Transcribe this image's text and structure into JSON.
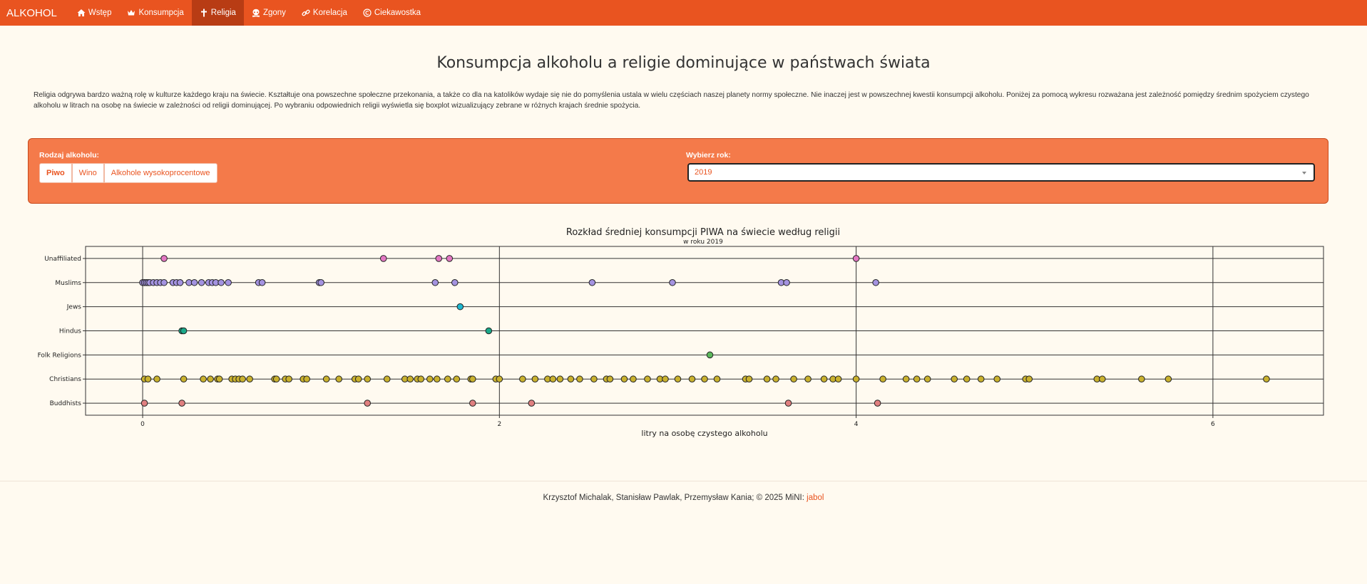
{
  "nav": {
    "brand": "ALKOHOL",
    "items": [
      {
        "label": "Wstęp",
        "icon": "home-icon"
      },
      {
        "label": "Konsumpcja",
        "icon": "crown-icon"
      },
      {
        "label": "Religia",
        "icon": "cross-icon",
        "active": true
      },
      {
        "label": "Zgony",
        "icon": "skull-icon"
      },
      {
        "label": "Korelacja",
        "icon": "link-icon"
      },
      {
        "label": "Ciekawostka",
        "icon": "copyright-icon"
      }
    ],
    "accent_color": "#e95420"
  },
  "page": {
    "title": "Konsumpcja alkoholu a religie dominujące w państwach świata",
    "intro": "Religia odgrywa bardzo ważną rolę w kulturze każdego kraju na świecie. Kształtuje ona powszechne społeczne przekonania, a także co dla na katolików wydaje się nie do pomyślenia ustala w wielu częściach naszej planety normy społeczne. Nie inaczej jest w powszechnej kwestii konsumpcji alkoholu. Poniżej za pomocą wykresu rozważana jest zależność pomiędzy średnim spożyciem czystego alkoholu w litrach na osobę na świecie w zależności od religii dominującej. Po wybraniu odpowiednich religii wyświetla się boxplot wizualizujący zebrane w różnych krajach średnie spożycia."
  },
  "controls": {
    "alcohol_label": "Rodzaj alkoholu:",
    "alcohol_options": [
      "Piwo",
      "Wino",
      "Alkohole wysokoprocentowe"
    ],
    "alcohol_selected": "Piwo",
    "year_label": "Wybierz rok:",
    "year_value": "2019"
  },
  "chart_data": {
    "type": "scatter",
    "title": "Rozkład średniej konsumpcji PIWA na świecie według religii",
    "subtitle": "w roku 2019",
    "xlabel": "litry na osobę czystego alkoholu",
    "ylabel": "",
    "xlim": [
      -0.32,
      6.62
    ],
    "xticks": [
      0,
      2,
      4,
      6
    ],
    "grid": true,
    "categories": [
      "Unaffiliated",
      "Muslims",
      "Jews",
      "Hindus",
      "Folk Religions",
      "Christians",
      "Buddhists"
    ],
    "series": [
      {
        "category": "Unaffiliated",
        "color": "#e377c2",
        "values": [
          0.12,
          1.35,
          1.66,
          1.72,
          4.0
        ]
      },
      {
        "category": "Muslims",
        "color": "#a493e0",
        "values": [
          0.0,
          0.01,
          0.02,
          0.03,
          0.04,
          0.06,
          0.08,
          0.1,
          0.12,
          0.17,
          0.19,
          0.21,
          0.26,
          0.29,
          0.33,
          0.37,
          0.39,
          0.41,
          0.44,
          0.48,
          0.65,
          0.67,
          0.99,
          1.0,
          1.64,
          1.75,
          2.52,
          2.97,
          3.58,
          3.61,
          4.11
        ]
      },
      {
        "category": "Jews",
        "color": "#1fb8d0",
        "values": [
          1.78
        ]
      },
      {
        "category": "Hindus",
        "color": "#1aa889",
        "values": [
          0.22,
          0.23,
          1.94
        ]
      },
      {
        "category": "Folk Religions",
        "color": "#5cb85c",
        "values": [
          3.18
        ]
      },
      {
        "category": "Christians",
        "color": "#c9b12e",
        "values": [
          0.01,
          0.03,
          0.08,
          0.23,
          0.34,
          0.38,
          0.42,
          0.43,
          0.5,
          0.52,
          0.54,
          0.56,
          0.6,
          0.74,
          0.75,
          0.8,
          0.82,
          0.9,
          0.92,
          1.03,
          1.1,
          1.19,
          1.21,
          1.26,
          1.37,
          1.47,
          1.5,
          1.54,
          1.56,
          1.61,
          1.65,
          1.71,
          1.76,
          1.84,
          1.85,
          1.98,
          2.0,
          2.13,
          2.2,
          2.27,
          2.3,
          2.34,
          2.4,
          2.45,
          2.53,
          2.6,
          2.62,
          2.7,
          2.75,
          2.83,
          2.9,
          2.93,
          3.0,
          3.08,
          3.15,
          3.22,
          3.38,
          3.4,
          3.5,
          3.55,
          3.65,
          3.73,
          3.82,
          3.87,
          3.9,
          4.0,
          4.15,
          4.28,
          4.34,
          4.4,
          4.55,
          4.62,
          4.7,
          4.79,
          4.95,
          4.97,
          5.35,
          5.38,
          5.6,
          5.75,
          6.3
        ]
      },
      {
        "category": "Buddhists",
        "color": "#e08080",
        "values": [
          0.01,
          0.22,
          1.26,
          1.85,
          2.18,
          3.62,
          4.12
        ]
      }
    ]
  },
  "footer": {
    "authors": "Krzysztof Michalak, Stanisław Pawlak, Przemysław Kania; © 2025 MiNI:",
    "link": "jabol"
  }
}
